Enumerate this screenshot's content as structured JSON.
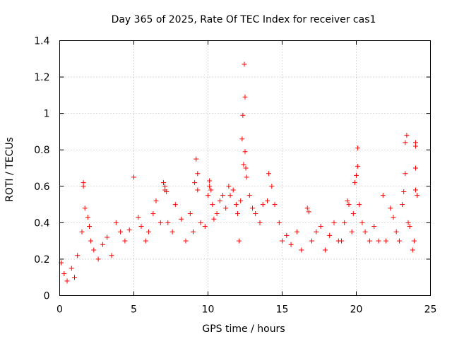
{
  "chart_data": {
    "type": "scatter",
    "title": "Day 365 of 2025, Rate Of TEC Index for receiver cas1",
    "xlabel": "GPS time / hours",
    "ylabel": "ROTI / TECUs",
    "xlim": [
      0,
      25
    ],
    "ylim": [
      0,
      1.4
    ],
    "x_ticks": [
      0,
      5,
      10,
      15,
      20,
      25
    ],
    "x_tick_labels": [
      "0",
      "5",
      "10",
      "15",
      "20",
      "25"
    ],
    "y_ticks": [
      0,
      0.2,
      0.4,
      0.6,
      0.8,
      1,
      1.2,
      1.4
    ],
    "y_tick_labels": [
      "0",
      "0.2",
      "0.4",
      "0.6",
      "0.8",
      "1",
      "1.2",
      "1.4"
    ],
    "grid": true,
    "marker": "plus",
    "series": [
      {
        "name": "ROTI",
        "color": "#ff0000",
        "points": [
          [
            0.1,
            0.18
          ],
          [
            0.3,
            0.12
          ],
          [
            0.5,
            0.08
          ],
          [
            0.8,
            0.15
          ],
          [
            1.0,
            0.1
          ],
          [
            1.2,
            0.22
          ],
          [
            1.5,
            0.35
          ],
          [
            1.6,
            0.62
          ],
          [
            1.6,
            0.6
          ],
          [
            1.7,
            0.48
          ],
          [
            1.9,
            0.43
          ],
          [
            2.0,
            0.38
          ],
          [
            2.1,
            0.3
          ],
          [
            2.3,
            0.25
          ],
          [
            2.6,
            0.2
          ],
          [
            2.9,
            0.28
          ],
          [
            3.2,
            0.32
          ],
          [
            3.5,
            0.22
          ],
          [
            3.8,
            0.4
          ],
          [
            4.1,
            0.35
          ],
          [
            4.4,
            0.3
          ],
          [
            4.7,
            0.36
          ],
          [
            5.0,
            0.65
          ],
          [
            5.3,
            0.43
          ],
          [
            5.5,
            0.38
          ],
          [
            5.8,
            0.3
          ],
          [
            6.0,
            0.35
          ],
          [
            6.3,
            0.45
          ],
          [
            6.5,
            0.52
          ],
          [
            6.8,
            0.4
          ],
          [
            7.0,
            0.62
          ],
          [
            7.1,
            0.6
          ],
          [
            7.1,
            0.58
          ],
          [
            7.2,
            0.57
          ],
          [
            7.3,
            0.4
          ],
          [
            7.6,
            0.35
          ],
          [
            7.8,
            0.5
          ],
          [
            8.2,
            0.42
          ],
          [
            8.5,
            0.3
          ],
          [
            8.8,
            0.45
          ],
          [
            9.0,
            0.35
          ],
          [
            9.1,
            0.62
          ],
          [
            9.2,
            0.75
          ],
          [
            9.3,
            0.67
          ],
          [
            9.3,
            0.58
          ],
          [
            9.5,
            0.4
          ],
          [
            9.8,
            0.38
          ],
          [
            10.0,
            0.55
          ],
          [
            10.1,
            0.63
          ],
          [
            10.1,
            0.6
          ],
          [
            10.2,
            0.58
          ],
          [
            10.3,
            0.5
          ],
          [
            10.4,
            0.42
          ],
          [
            10.6,
            0.45
          ],
          [
            10.8,
            0.52
          ],
          [
            11.0,
            0.55
          ],
          [
            11.2,
            0.48
          ],
          [
            11.4,
            0.6
          ],
          [
            11.5,
            0.55
          ],
          [
            11.7,
            0.58
          ],
          [
            11.9,
            0.5
          ],
          [
            12.0,
            0.45
          ],
          [
            12.1,
            0.3
          ],
          [
            12.2,
            0.52
          ],
          [
            12.3,
            0.86
          ],
          [
            12.35,
            0.99
          ],
          [
            12.4,
            0.72
          ],
          [
            12.45,
            1.27
          ],
          [
            12.5,
            1.09
          ],
          [
            12.5,
            0.79
          ],
          [
            12.55,
            0.7
          ],
          [
            12.6,
            0.65
          ],
          [
            12.8,
            0.55
          ],
          [
            13.0,
            0.48
          ],
          [
            13.2,
            0.45
          ],
          [
            13.5,
            0.4
          ],
          [
            13.7,
            0.5
          ],
          [
            14.0,
            0.52
          ],
          [
            14.1,
            0.67
          ],
          [
            14.3,
            0.6
          ],
          [
            14.5,
            0.5
          ],
          [
            14.8,
            0.4
          ],
          [
            15.0,
            0.3
          ],
          [
            15.3,
            0.33
          ],
          [
            15.6,
            0.28
          ],
          [
            16.0,
            0.35
          ],
          [
            16.3,
            0.25
          ],
          [
            16.7,
            0.48
          ],
          [
            16.8,
            0.46
          ],
          [
            17.0,
            0.3
          ],
          [
            17.3,
            0.35
          ],
          [
            17.6,
            0.38
          ],
          [
            17.9,
            0.25
          ],
          [
            18.2,
            0.33
          ],
          [
            18.5,
            0.4
          ],
          [
            18.8,
            0.3
          ],
          [
            19.0,
            0.3
          ],
          [
            19.2,
            0.4
          ],
          [
            19.4,
            0.52
          ],
          [
            19.5,
            0.5
          ],
          [
            19.7,
            0.35
          ],
          [
            19.8,
            0.45
          ],
          [
            19.9,
            0.62
          ],
          [
            20.0,
            0.66
          ],
          [
            20.1,
            0.71
          ],
          [
            20.1,
            0.81
          ],
          [
            20.2,
            0.5
          ],
          [
            20.4,
            0.4
          ],
          [
            20.6,
            0.35
          ],
          [
            20.9,
            0.3
          ],
          [
            21.2,
            0.38
          ],
          [
            21.5,
            0.3
          ],
          [
            21.8,
            0.55
          ],
          [
            22.0,
            0.3
          ],
          [
            22.3,
            0.48
          ],
          [
            22.5,
            0.43
          ],
          [
            22.7,
            0.35
          ],
          [
            22.9,
            0.3
          ],
          [
            23.1,
            0.5
          ],
          [
            23.2,
            0.57
          ],
          [
            23.3,
            0.67
          ],
          [
            23.3,
            0.84
          ],
          [
            23.4,
            0.88
          ],
          [
            23.5,
            0.4
          ],
          [
            23.6,
            0.38
          ],
          [
            23.8,
            0.25
          ],
          [
            23.9,
            0.3
          ],
          [
            24.0,
            0.58
          ],
          [
            24.0,
            0.7
          ],
          [
            24.0,
            0.84
          ],
          [
            24.0,
            0.82
          ],
          [
            24.1,
            0.55
          ]
        ]
      }
    ]
  }
}
